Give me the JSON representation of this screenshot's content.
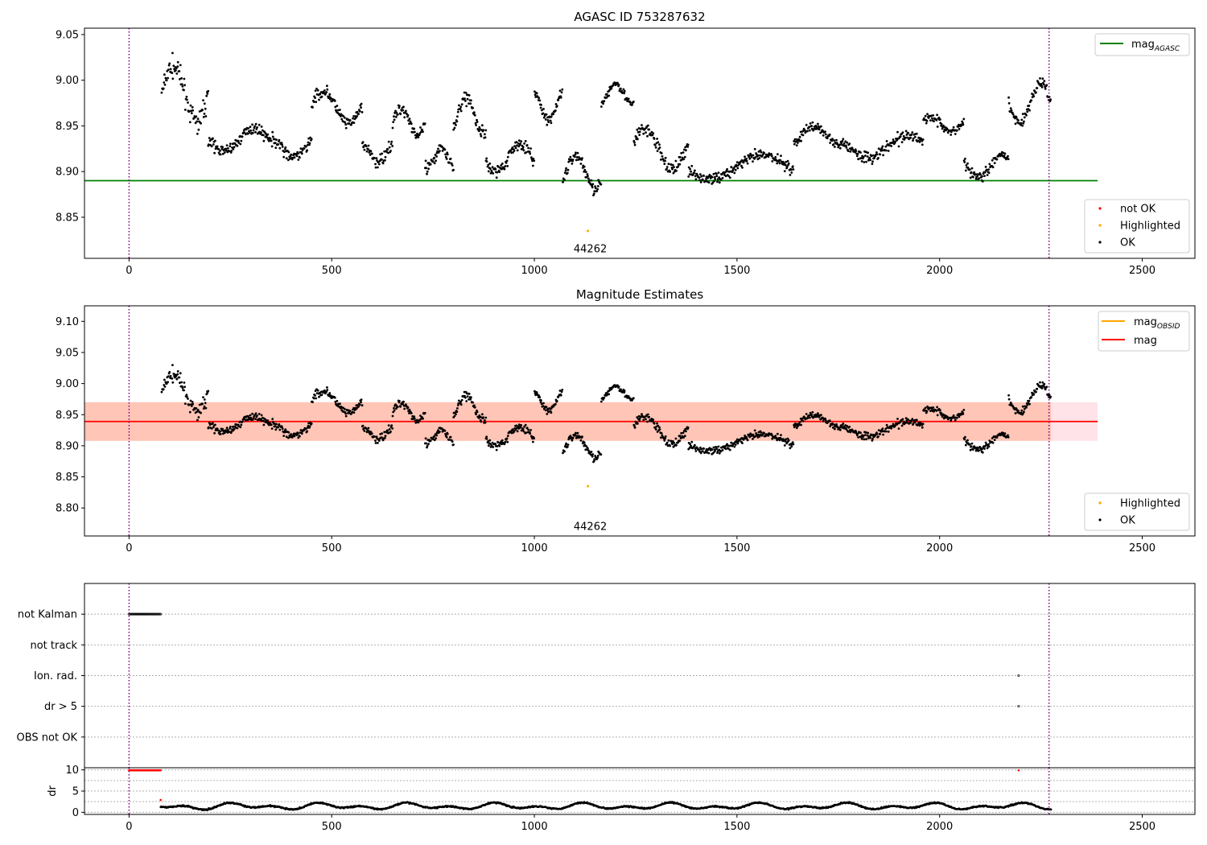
{
  "colors": {
    "ok": "#000000",
    "not_ok": "#ff0000",
    "highlighted": "#ffa500",
    "mag_agasc": "#008000",
    "mag": "#ff0000",
    "mag_obsid": "#ffa500",
    "vline": "#800080",
    "band_mag": "#ffc0cb",
    "band_obsid": "#ffa07a"
  },
  "chart_data": [
    {
      "type": "scatter",
      "title": "AGASC ID 753287632",
      "xlim": [
        -110,
        2630
      ],
      "ylim": [
        8.805,
        9.057
      ],
      "xticks": [
        0,
        500,
        1000,
        1500,
        2000,
        2500
      ],
      "yticks": [
        8.85,
        8.9,
        8.95,
        9.0,
        9.05
      ],
      "ytick_labels": [
        "8.85",
        "8.90",
        "8.95",
        "9.00",
        "9.05"
      ],
      "hlines": [
        {
          "name": "mag_AGASC",
          "y": 8.89,
          "x_range": [
            -110,
            2390
          ]
        }
      ],
      "vlines": [
        0,
        2270
      ],
      "annotation": {
        "text": "44262",
        "x": 1138,
        "y": 8.815
      },
      "highlighted_points": [
        [
          1132,
          8.835
        ]
      ],
      "legend_lines": [
        {
          "base": "mag",
          "sub": "AGASC"
        }
      ],
      "legend_markers": [
        "not OK",
        "Highlighted",
        "OK"
      ],
      "ok_segments": [
        {
          "x": [
            80,
            195
          ],
          "mean": 8.985,
          "amp": 0.03,
          "spread": 0.022
        },
        {
          "x": [
            195,
            345
          ],
          "mean": 8.935,
          "amp": 0.012,
          "spread": 0.012
        },
        {
          "x": [
            345,
            450
          ],
          "mean": 8.925,
          "amp": 0.01,
          "spread": 0.015
        },
        {
          "x": [
            450,
            575
          ],
          "mean": 8.97,
          "amp": 0.018,
          "spread": 0.012
        },
        {
          "x": [
            575,
            650
          ],
          "mean": 8.92,
          "amp": 0.01,
          "spread": 0.015
        },
        {
          "x": [
            650,
            730
          ],
          "mean": 8.955,
          "amp": 0.015,
          "spread": 0.013
        },
        {
          "x": [
            730,
            800
          ],
          "mean": 8.915,
          "amp": 0.012,
          "spread": 0.015
        },
        {
          "x": [
            800,
            880
          ],
          "mean": 8.962,
          "amp": 0.02,
          "spread": 0.015
        },
        {
          "x": [
            880,
            1000
          ],
          "mean": 8.915,
          "amp": 0.015,
          "spread": 0.013
        },
        {
          "x": [
            1000,
            1070
          ],
          "mean": 8.97,
          "amp": 0.015,
          "spread": 0.012
        },
        {
          "x": [
            1070,
            1165
          ],
          "mean": 8.9,
          "amp": 0.018,
          "spread": 0.015
        },
        {
          "x": [
            1165,
            1245
          ],
          "mean": 8.985,
          "amp": 0.012,
          "spread": 0.01
        },
        {
          "x": [
            1245,
            1380
          ],
          "mean": 8.925,
          "amp": 0.022,
          "spread": 0.015
        },
        {
          "x": [
            1380,
            1640
          ],
          "mean": 8.905,
          "amp": 0.013,
          "spread": 0.012
        },
        {
          "x": [
            1640,
            1760
          ],
          "mean": 8.94,
          "amp": 0.01,
          "spread": 0.011
        },
        {
          "x": [
            1760,
            1960
          ],
          "mean": 8.928,
          "amp": 0.012,
          "spread": 0.013
        },
        {
          "x": [
            1960,
            2060
          ],
          "mean": 8.952,
          "amp": 0.008,
          "spread": 0.01
        },
        {
          "x": [
            2060,
            2170
          ],
          "mean": 8.905,
          "amp": 0.012,
          "spread": 0.012
        },
        {
          "x": [
            2170,
            2275
          ],
          "mean": 8.975,
          "amp": 0.022,
          "spread": 0.012
        }
      ]
    },
    {
      "type": "scatter",
      "title": "Magnitude Estimates",
      "xlim": [
        -110,
        2630
      ],
      "ylim": [
        8.755,
        9.125
      ],
      "xticks": [
        0,
        500,
        1000,
        1500,
        2000,
        2500
      ],
      "yticks": [
        8.8,
        8.85,
        8.9,
        8.95,
        9.0,
        9.05,
        9.1
      ],
      "ytick_labels": [
        "8.80",
        "8.85",
        "8.90",
        "8.95",
        "9.00",
        "9.05",
        "9.10"
      ],
      "hlines": [
        {
          "name": "mag",
          "y": 8.939,
          "x_range": [
            -110,
            2390
          ]
        }
      ],
      "bands": [
        {
          "name": "mag",
          "y": [
            8.908,
            8.97
          ],
          "x_range": [
            -110,
            2390
          ]
        },
        {
          "name": "mag_OBSID",
          "y": [
            8.908,
            8.97
          ],
          "x_range": [
            -110,
            2275
          ]
        }
      ],
      "vlines": [
        0,
        2270
      ],
      "annotation": {
        "text": "44262",
        "x": 1138,
        "y": 8.77
      },
      "highlighted_points": [
        [
          1132,
          8.835
        ]
      ],
      "legend_lines": [
        {
          "base": "mag",
          "sub": "OBSID"
        },
        {
          "base": "mag",
          "sub": ""
        }
      ],
      "legend_markers": [
        "Highlighted",
        "OK"
      ]
    },
    {
      "type": "scatter",
      "categories": [
        "not Kalman",
        "not track",
        "Ion. rad.",
        "dr > 5",
        "OBS not OK"
      ],
      "xlim": [
        -110,
        2630
      ],
      "vlines": [
        0,
        2270
      ],
      "flag_points": [
        {
          "category": "not Kalman",
          "x_range": [
            0,
            78
          ]
        },
        {
          "category": "Ion. rad.",
          "x_range": [
            2195,
            2196
          ]
        },
        {
          "category": "dr > 5",
          "x_range": [
            2195,
            2196
          ]
        }
      ]
    },
    {
      "type": "scatter",
      "ylabel": "dr",
      "xlim": [
        -110,
        2630
      ],
      "ylim": [
        -0.5,
        10.5
      ],
      "xticks": [
        0,
        500,
        1000,
        1500,
        2000,
        2500
      ],
      "yticks": [
        0,
        5,
        10
      ],
      "ytick_labels": [
        "0",
        "5",
        "10"
      ],
      "vlines": [
        0,
        2270
      ],
      "red_points": [
        {
          "x_range": [
            0,
            78
          ],
          "y": 9.9
        },
        {
          "x": 78,
          "y": 2.9
        },
        {
          "x": 2195,
          "y": 9.9
        }
      ],
      "ok_series": {
        "x_range": [
          78,
          2275
        ],
        "mean": 1.4,
        "amp": 0.9
      }
    }
  ]
}
